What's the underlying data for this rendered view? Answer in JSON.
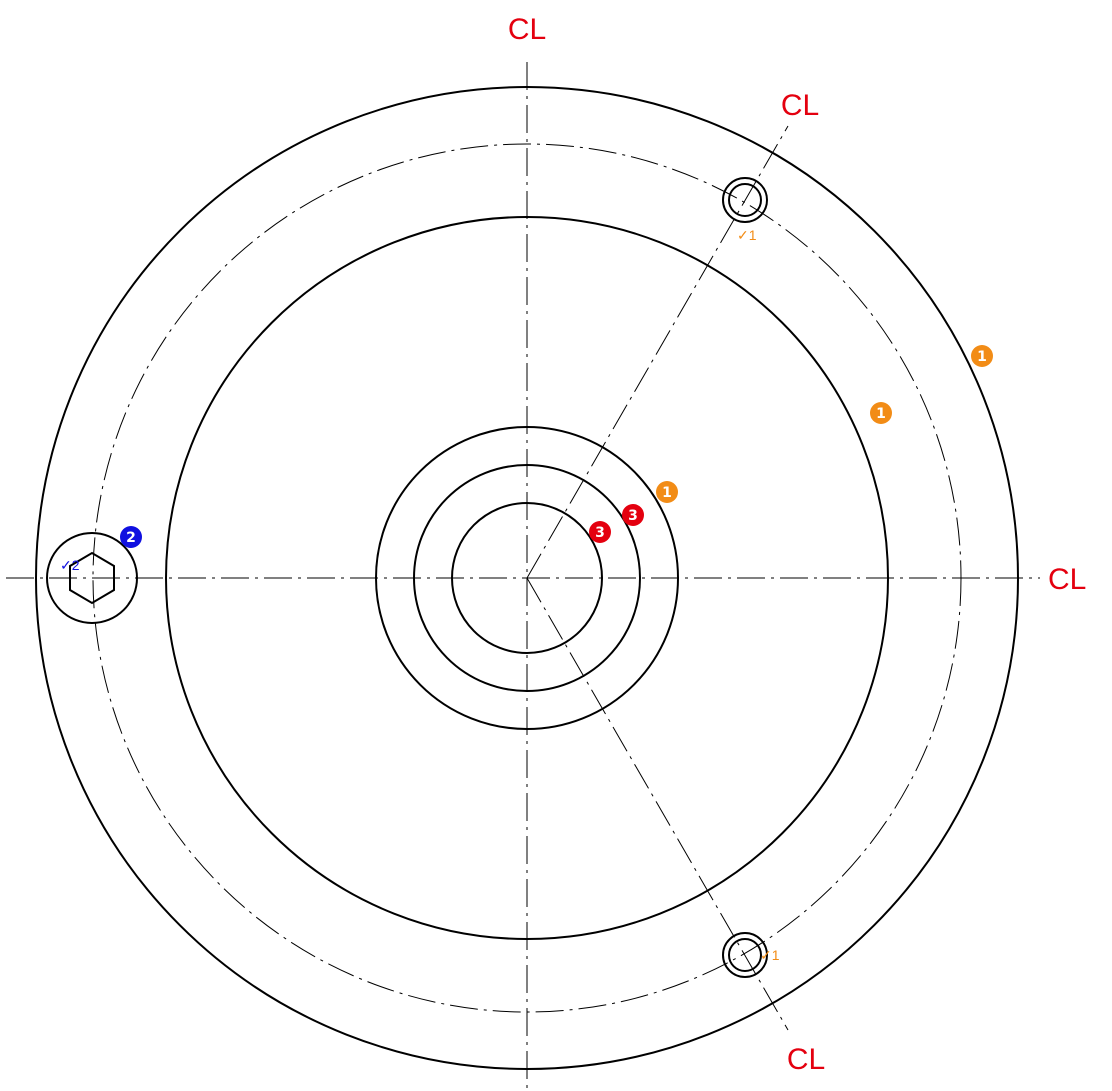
{
  "drawing": {
    "centerline_label": "CL",
    "colors": {
      "line": "#000000",
      "centerline_label": "#e4000f",
      "note_1": "#f28c16",
      "note_2": "#1010e0",
      "note_3": "#e4000f"
    },
    "centerline_labels": [
      {
        "id": "cl-top",
        "text": "CL"
      },
      {
        "id": "cl-upper-right",
        "text": "CL"
      },
      {
        "id": "cl-right",
        "text": "CL"
      },
      {
        "id": "cl-lower-right",
        "text": "CL"
      }
    ],
    "note_badges": [
      {
        "id": "badge-outer-1",
        "text": "1",
        "color": "#f28c16"
      },
      {
        "id": "badge-mid-1",
        "text": "1",
        "color": "#f28c16"
      },
      {
        "id": "badge-hub-1",
        "text": "1",
        "color": "#f28c16"
      },
      {
        "id": "badge-bore-3a",
        "text": "3",
        "color": "#e4000f"
      },
      {
        "id": "badge-bore-3b",
        "text": "3",
        "color": "#e4000f"
      },
      {
        "id": "badge-plug-2",
        "text": "2",
        "color": "#1010e0"
      }
    ],
    "finish_marks": [
      {
        "id": "finish-upper-hole",
        "text": "✓1",
        "color": "#f28c16"
      },
      {
        "id": "finish-lower-hole",
        "text": "✓1",
        "color": "#f28c16"
      },
      {
        "id": "finish-plug",
        "text": "✓2",
        "color": "#1010e0"
      }
    ]
  }
}
